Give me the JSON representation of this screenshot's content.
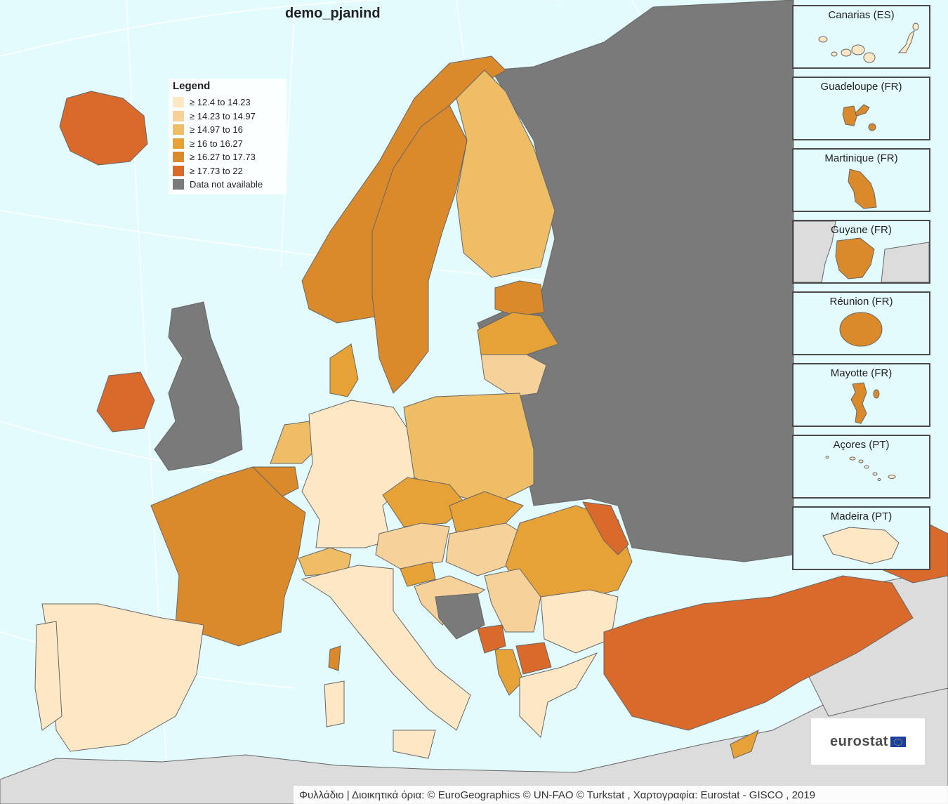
{
  "map": {
    "title": "demo_pjanind",
    "legend": {
      "title": "Legend",
      "classes": [
        {
          "label": "≥ 12.4 to 14.23",
          "color": "#fde7c4"
        },
        {
          "label": "≥ 14.23 to 14.97",
          "color": "#f6d29a"
        },
        {
          "label": "≥ 14.97 to 16",
          "color": "#eebd66"
        },
        {
          "label": "≥ 16 to 16.27",
          "color": "#e6a236"
        },
        {
          "label": "≥ 16.27 to 17.73",
          "color": "#db8a2b"
        },
        {
          "label": "≥ 17.73 to 22",
          "color": "#d96a2c"
        },
        {
          "label": "Data not available",
          "color": "#7a7a7a"
        }
      ]
    },
    "colors": {
      "sea": "#e3fbfd",
      "non_eu_land": "#dcdcdc",
      "border": "#666666",
      "graticule": "#ffffff"
    },
    "insets": [
      {
        "label": "Canarias (ES)",
        "color": "#fde7c4"
      },
      {
        "label": "Guadeloupe (FR)",
        "color": "#db8a2b"
      },
      {
        "label": "Martinique (FR)",
        "color": "#db8a2b"
      },
      {
        "label": "Guyane (FR)",
        "color": "#db8a2b"
      },
      {
        "label": "Réunion (FR)",
        "color": "#db8a2b"
      },
      {
        "label": "Mayotte (FR)",
        "color": "#db8a2b"
      },
      {
        "label": "Açores (PT)",
        "color": "#fde7c4"
      },
      {
        "label": "Madeira (PT)",
        "color": "#fde7c4"
      }
    ],
    "logo": "eurostat",
    "attribution": "Φυλλάδιο | Διοικητικά όρια: © EuroGeographics © UN-FAO © Turkstat , Χαρτογραφία: Eurostat - GISCO , 2019"
  }
}
